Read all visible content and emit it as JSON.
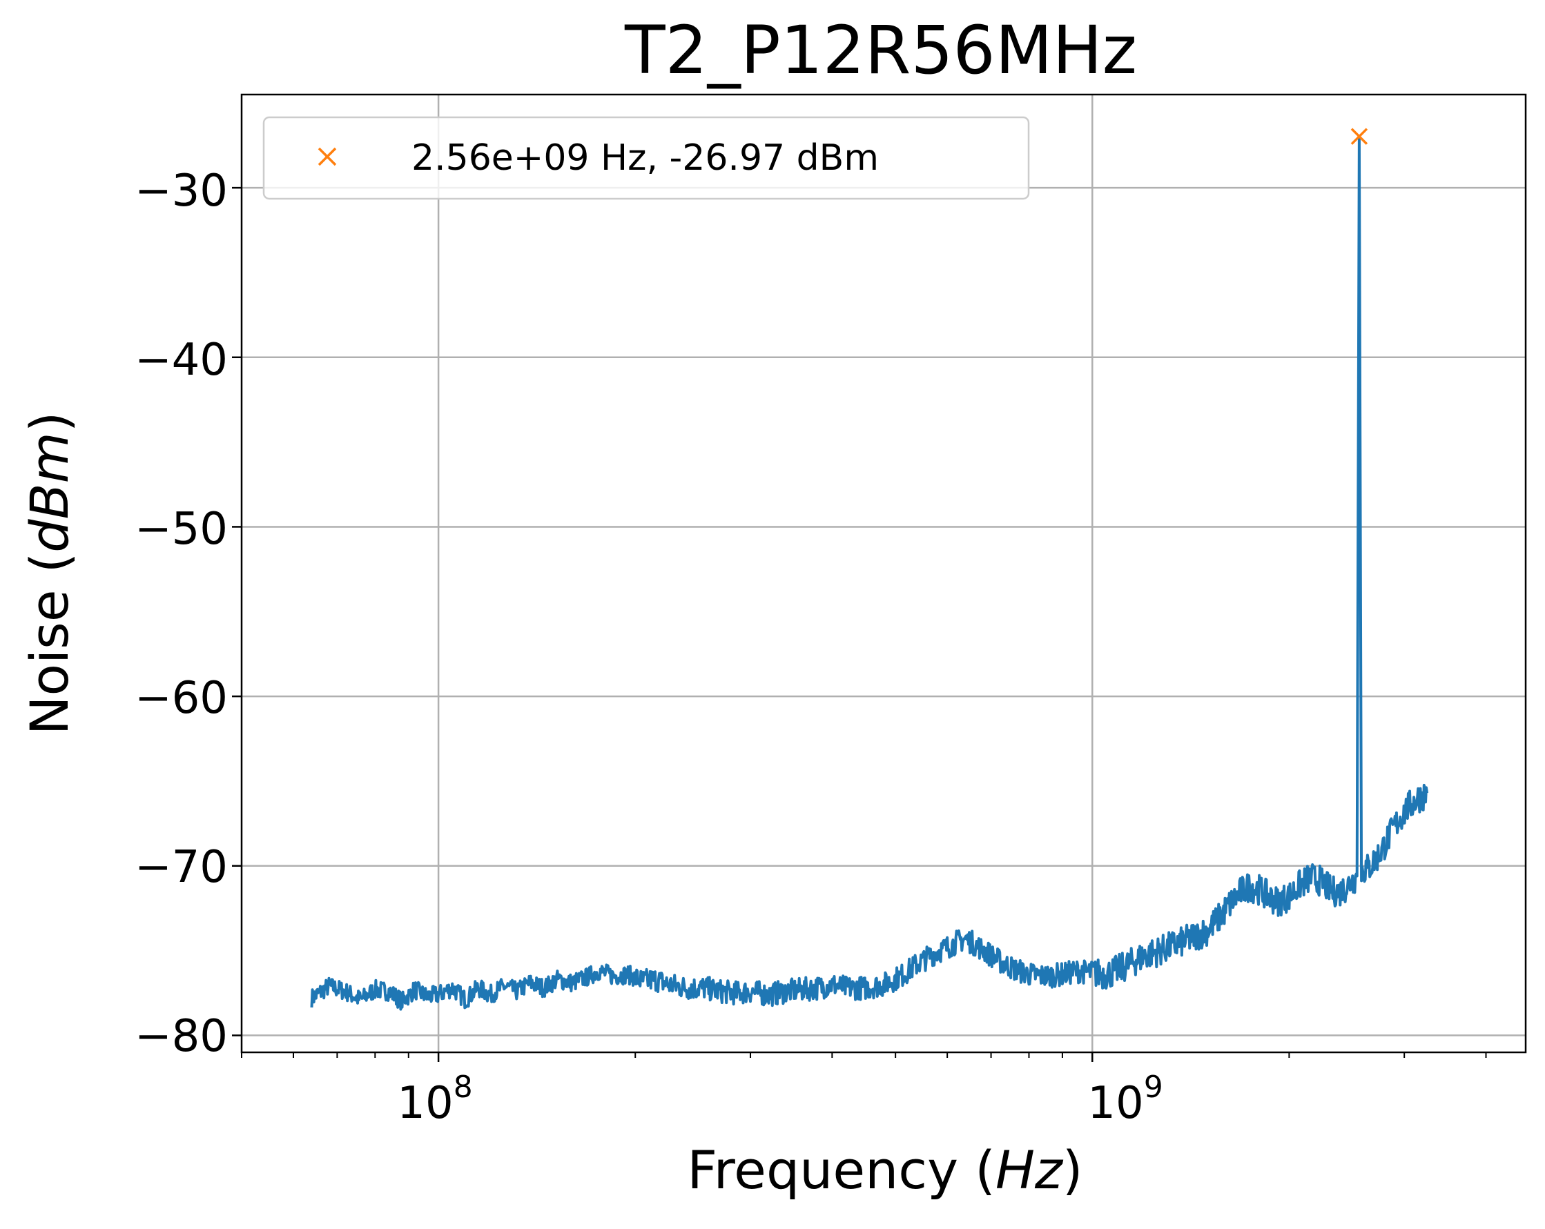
{
  "chart_data": {
    "type": "line",
    "title": "T2_P12R56MHz",
    "xlabel": "Frequency",
    "xlabel_unit": "Hz",
    "ylabel": "Noise",
    "ylabel_unit": "dBm",
    "x_scale": "log",
    "xlim": [
      50000000,
      4600000000
    ],
    "ylim": [
      -81,
      -24.5
    ],
    "grid": true,
    "x_major_ticks": [
      100000000,
      1000000000
    ],
    "x_major_tick_labels": [
      {
        "base": "10",
        "exp": "8"
      },
      {
        "base": "10",
        "exp": "9"
      }
    ],
    "y_ticks": [
      -30,
      -40,
      -50,
      -60,
      -70,
      -80
    ],
    "y_tick_labels": [
      "−30",
      "−40",
      "−50",
      "−60",
      "−70",
      "−80"
    ],
    "legend_location": "upper-left",
    "colors": {
      "series": "#1f77b4",
      "marker": "#ff7f0e",
      "grid": "#b0b0b0"
    },
    "series": [
      {
        "points": [
          [
            64000000,
            -77.8
          ],
          [
            68000000,
            -77.1
          ],
          [
            72000000,
            -77.4
          ],
          [
            76000000,
            -77.9
          ],
          [
            80000000,
            -77.3
          ],
          [
            84000000,
            -77.4
          ],
          [
            88000000,
            -78.0
          ],
          [
            92000000,
            -77.3
          ],
          [
            96000000,
            -77.7
          ],
          [
            100000000,
            -77.6
          ],
          [
            105000000,
            -77.2
          ],
          [
            110000000,
            -77.9
          ],
          [
            115000000,
            -77.2
          ],
          [
            120000000,
            -77.6
          ],
          [
            126000000,
            -77.1
          ],
          [
            132000000,
            -77.4
          ],
          [
            138000000,
            -76.9
          ],
          [
            145000000,
            -77.2
          ],
          [
            152000000,
            -76.7
          ],
          [
            160000000,
            -76.9
          ],
          [
            168000000,
            -76.6
          ],
          [
            176000000,
            -76.2
          ],
          [
            185000000,
            -76.5
          ],
          [
            195000000,
            -76.4
          ],
          [
            205000000,
            -76.8
          ],
          [
            215000000,
            -76.7
          ],
          [
            225000000,
            -77.0
          ],
          [
            240000000,
            -77.2
          ],
          [
            255000000,
            -77.2
          ],
          [
            270000000,
            -77.4
          ],
          [
            285000000,
            -77.5
          ],
          [
            300000000,
            -77.4
          ],
          [
            320000000,
            -77.6
          ],
          [
            340000000,
            -77.4
          ],
          [
            360000000,
            -77.3
          ],
          [
            380000000,
            -77.2
          ],
          [
            400000000,
            -77.0
          ],
          [
            420000000,
            -77.2
          ],
          [
            450000000,
            -77.2
          ],
          [
            480000000,
            -77.0
          ],
          [
            510000000,
            -76.5
          ],
          [
            540000000,
            -75.8
          ],
          [
            570000000,
            -75.2
          ],
          [
            600000000,
            -74.8
          ],
          [
            620000000,
            -74.5
          ],
          [
            640000000,
            -74.3
          ],
          [
            660000000,
            -74.6
          ],
          [
            690000000,
            -75.1
          ],
          [
            720000000,
            -75.6
          ],
          [
            760000000,
            -76.1
          ],
          [
            800000000,
            -76.4
          ],
          [
            850000000,
            -76.5
          ],
          [
            900000000,
            -76.4
          ],
          [
            950000000,
            -76.2
          ],
          [
            1000000000,
            -76.3
          ],
          [
            1050000000,
            -76.4
          ],
          [
            1100000000,
            -76.1
          ],
          [
            1150000000,
            -75.7
          ],
          [
            1200000000,
            -75.3
          ],
          [
            1270000000,
            -75.0
          ],
          [
            1350000000,
            -74.6
          ],
          [
            1430000000,
            -74.2
          ],
          [
            1500000000,
            -73.8
          ],
          [
            1560000000,
            -73.1
          ],
          [
            1620000000,
            -72.3
          ],
          [
            1680000000,
            -71.6
          ],
          [
            1740000000,
            -71.2
          ],
          [
            1800000000,
            -71.4
          ],
          [
            1860000000,
            -71.8
          ],
          [
            1920000000,
            -72.1
          ],
          [
            2000000000,
            -71.8
          ],
          [
            2080000000,
            -71.1
          ],
          [
            2160000000,
            -70.7
          ],
          [
            2240000000,
            -70.9
          ],
          [
            2320000000,
            -71.5
          ],
          [
            2400000000,
            -71.5
          ],
          [
            2480000000,
            -71.0
          ],
          [
            2540000000,
            -70.6
          ],
          [
            2560000000,
            -26.97
          ],
          [
            2580000000,
            -70.3
          ],
          [
            2650000000,
            -70.1
          ],
          [
            2750000000,
            -69.3
          ],
          [
            2850000000,
            -68.2
          ],
          [
            2950000000,
            -67.2
          ],
          [
            3050000000,
            -66.5
          ],
          [
            3150000000,
            -66.0
          ],
          [
            3250000000,
            -65.7
          ]
        ]
      }
    ],
    "peak_marker": {
      "x": 2560000000,
      "y": -26.97,
      "label": "2.56e+09 Hz, -26.97 dBm"
    }
  }
}
